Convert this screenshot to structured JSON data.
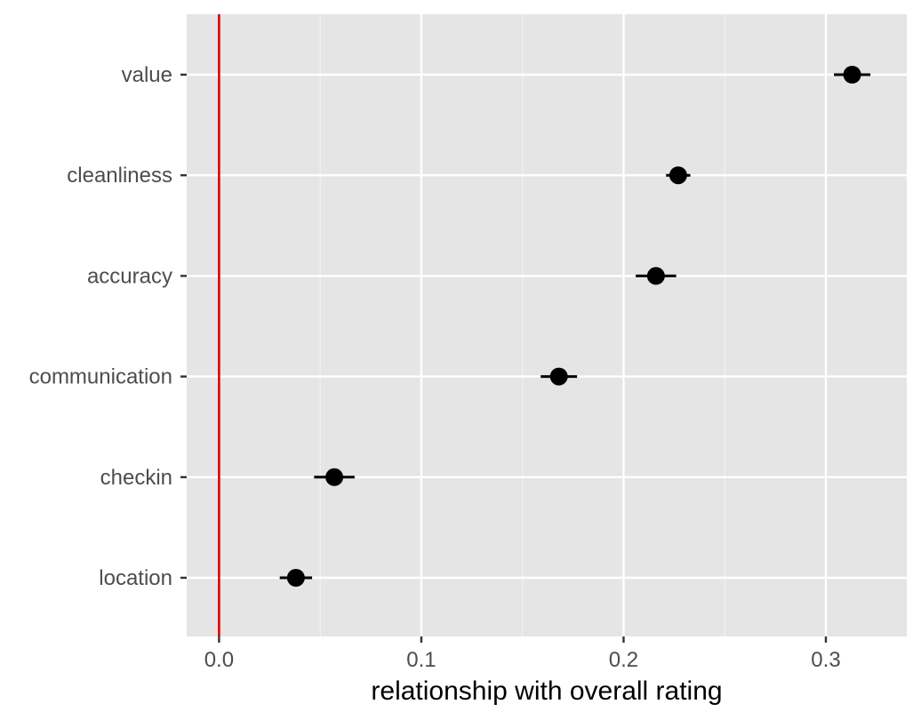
{
  "chart_data": {
    "type": "scatter",
    "variant": "dot-and-whisker",
    "orientation": "horizontal",
    "title": "",
    "xlabel": "relationship with overall rating",
    "ylabel": "",
    "categories": [
      "value",
      "cleanliness",
      "accuracy",
      "communication",
      "checkin",
      "location"
    ],
    "series": [
      {
        "values": [
          0.313,
          0.227,
          0.216,
          0.168,
          0.057,
          0.038
        ],
        "lower": [
          0.304,
          0.221,
          0.206,
          0.159,
          0.047,
          0.03
        ],
        "upper": [
          0.322,
          0.233,
          0.226,
          0.177,
          0.067,
          0.046
        ]
      }
    ],
    "xlim": [
      -0.016,
      0.34
    ],
    "x_ticks": [
      {
        "value": 0.0,
        "label": "0.0"
      },
      {
        "value": 0.1,
        "label": "0.1"
      },
      {
        "value": 0.2,
        "label": "0.2"
      },
      {
        "value": 0.3,
        "label": "0.3"
      }
    ],
    "x_minor_ticks": [
      0.05,
      0.15,
      0.25
    ],
    "reference_line": {
      "x": 0,
      "color": "#e00000"
    },
    "grid": true,
    "legend": "none",
    "colors": {
      "panel_background": "#e5e5e5",
      "grid_major": "#ffffff",
      "grid_minor": "#f2f2f2",
      "point": "#000000",
      "axis_text": "#4d4d4d",
      "tick": "#333333"
    }
  }
}
